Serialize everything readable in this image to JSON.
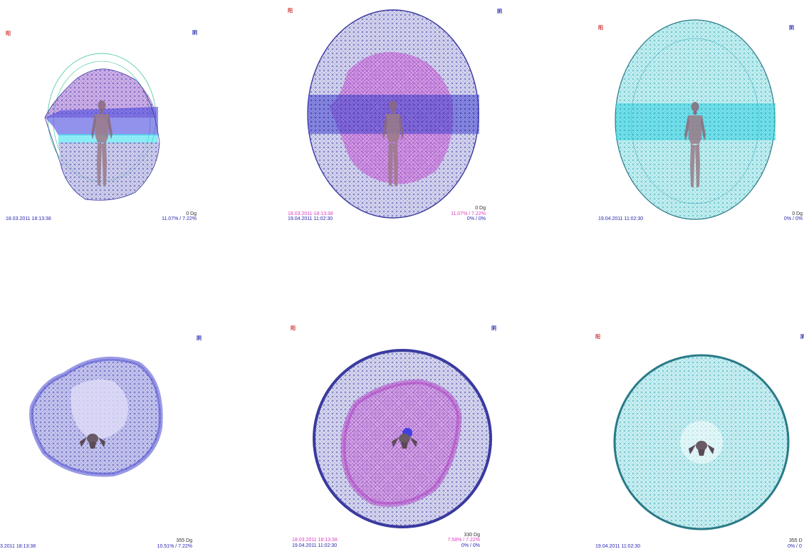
{
  "glyphs": {
    "left": "阳",
    "right": "阴"
  },
  "colors": {
    "wire_purple": "#3a3aa0",
    "wire_cyan": "#2aa8b8",
    "fill_lavender": "#d8d8f4",
    "fill_magenta": "#d070e0",
    "fill_blue": "#4848e0",
    "fill_cyan": "#7de8ee",
    "glyph_red": "#d03030",
    "glyph_blue": "#2828b0",
    "text_pink": "#e040c0",
    "text_blue": "#2828b0"
  },
  "panels": [
    {
      "id": "p1",
      "view": "front",
      "dates": [
        "18.03.2011 18:13:38"
      ],
      "angle": "0 Dg",
      "values": [
        "11.07% / 7.22%"
      ]
    },
    {
      "id": "p2",
      "view": "front",
      "dates": [
        "18.03.2011 18:13:38",
        "19.04.2011 11:02:30"
      ],
      "angle": "0 Dg",
      "values": [
        "11.07% / 7.22%",
        "0% / 0%"
      ]
    },
    {
      "id": "p3",
      "view": "front",
      "dates": [
        "19.04.2011 11:02:30"
      ],
      "angle": "0 Dg",
      "values": [
        "0% / 0%"
      ]
    },
    {
      "id": "p4",
      "view": "top",
      "dates": [
        "3.2011 18:13:38"
      ],
      "angle": "355 Dg",
      "values": [
        "10.51% / 7.22%"
      ]
    },
    {
      "id": "p5",
      "view": "top",
      "dates": [
        "18.03.2011 18:13:38",
        "19.04.2011 11:02:30"
      ],
      "angle": "330 Dg",
      "values": [
        "7.58% / 7.22%",
        "0% / 0%"
      ]
    },
    {
      "id": "p6",
      "view": "top",
      "dates": [
        "19.04.2011 11:02:30"
      ],
      "angle": "355 D",
      "values": [
        "0% / 0"
      ]
    }
  ]
}
